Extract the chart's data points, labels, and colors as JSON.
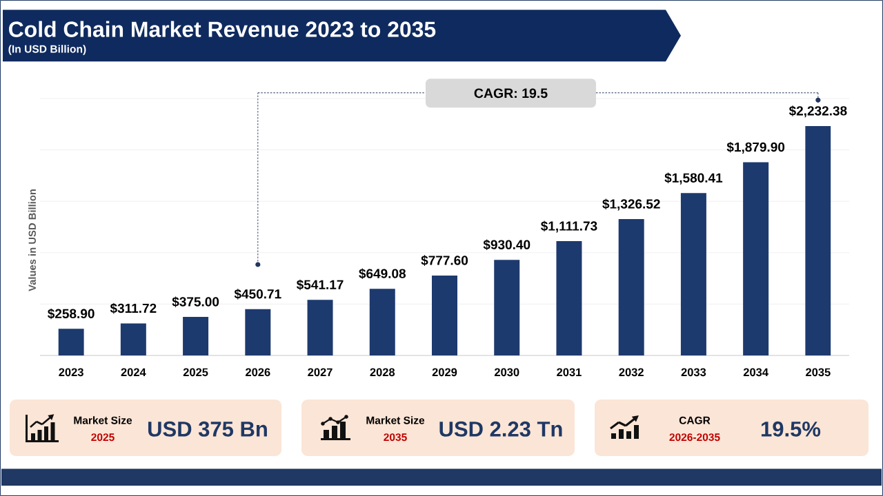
{
  "chart_data": {
    "type": "bar",
    "title": "Cold Chain Market Revenue 2023 to 2035",
    "subtitle": "(In USD Billion)",
    "ylabel": "Values in USD Billion",
    "categories": [
      "2023",
      "2024",
      "2025",
      "2026",
      "2027",
      "2028",
      "2029",
      "2030",
      "2031",
      "2032",
      "2033",
      "2034",
      "2035"
    ],
    "values": [
      258.9,
      311.72,
      375.0,
      450.71,
      541.17,
      649.08,
      777.6,
      930.4,
      1111.73,
      1326.52,
      1580.41,
      1879.9,
      2232.38
    ],
    "value_labels": [
      "$258.90",
      "$311.72",
      "$375.00",
      "$450.71",
      "$541.17",
      "$649.08",
      "$777.60",
      "$930.40",
      "$1,111.73",
      "$1,326.52",
      "$1,580.41",
      "$1,879.90",
      "$2,232.38"
    ],
    "color": "#1d3a6e",
    "ylim": [
      0,
      2500
    ],
    "yticks": [
      {
        "value": 0,
        "label": null
      },
      {
        "value": 500,
        "label": null
      },
      {
        "value": 1000,
        "label": null
      },
      {
        "value": 1500,
        "label": null
      },
      {
        "value": 2000,
        "label": null
      },
      {
        "value": 2500,
        "label": null
      }
    ],
    "grid": "y",
    "tick_labels": "x",
    "annotations": [
      "CAGR: 19.5",
      "Market Size",
      "2025",
      "USD 375 Bn",
      "Market Size",
      "2035",
      "USD 2.23 Tn",
      "CAGR",
      "2026-2035",
      "19.5%"
    ]
  }
}
